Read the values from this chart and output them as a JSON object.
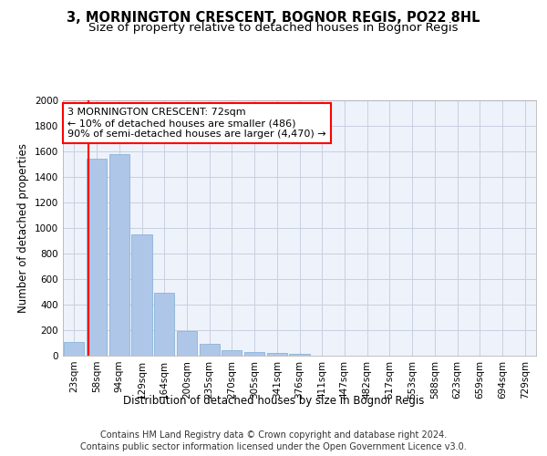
{
  "title_line1": "3, MORNINGTON CRESCENT, BOGNOR REGIS, PO22 8HL",
  "title_line2": "Size of property relative to detached houses in Bognor Regis",
  "xlabel": "Distribution of detached houses by size in Bognor Regis",
  "ylabel": "Number of detached properties",
  "categories": [
    "23sqm",
    "58sqm",
    "94sqm",
    "129sqm",
    "164sqm",
    "200sqm",
    "235sqm",
    "270sqm",
    "305sqm",
    "341sqm",
    "376sqm",
    "411sqm",
    "447sqm",
    "482sqm",
    "517sqm",
    "553sqm",
    "588sqm",
    "623sqm",
    "659sqm",
    "694sqm",
    "729sqm"
  ],
  "values": [
    110,
    1545,
    1575,
    950,
    490,
    190,
    95,
    45,
    30,
    20,
    15,
    0,
    0,
    0,
    0,
    0,
    0,
    0,
    0,
    0,
    0
  ],
  "bar_color": "#aec6e8",
  "bar_edge_color": "#7dadd4",
  "vline_color": "red",
  "vline_pos": 0.72,
  "annotation_text": "3 MORNINGTON CRESCENT: 72sqm\n← 10% of detached houses are smaller (486)\n90% of semi-detached houses are larger (4,470) →",
  "annotation_box_color": "white",
  "annotation_box_edge_color": "red",
  "ylim": [
    0,
    2000
  ],
  "yticks": [
    0,
    200,
    400,
    600,
    800,
    1000,
    1200,
    1400,
    1600,
    1800,
    2000
  ],
  "footnote_line1": "Contains HM Land Registry data © Crown copyright and database right 2024.",
  "footnote_line2": "Contains public sector information licensed under the Open Government Licence v3.0.",
  "background_color": "#eef2fa",
  "grid_color": "#c8cfe0",
  "title_fontsize": 10.5,
  "subtitle_fontsize": 9.5,
  "axis_label_fontsize": 8.5,
  "tick_fontsize": 7.5,
  "annotation_fontsize": 8,
  "footnote_fontsize": 7
}
